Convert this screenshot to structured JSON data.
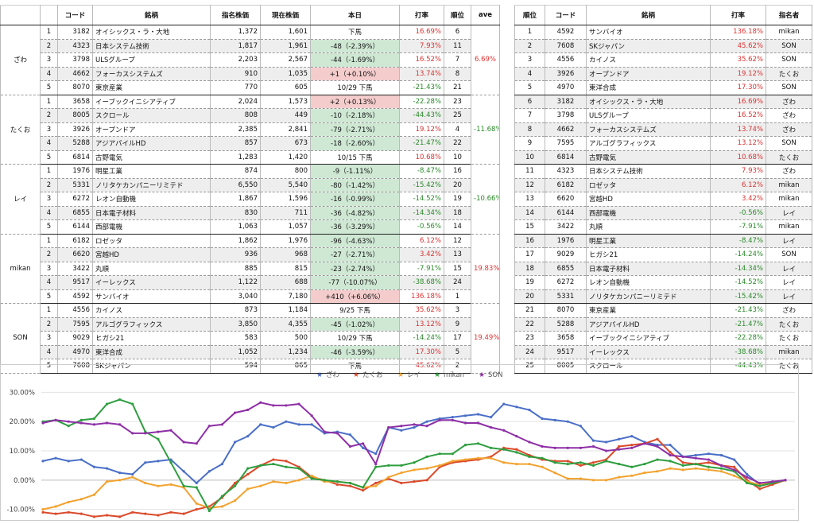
{
  "left_table": {
    "headers": [
      "",
      "",
      "コード",
      "銘柄",
      "指名株価",
      "現在株価",
      "本日",
      "打率",
      "順位",
      "ave"
    ],
    "groups": [
      {
        "name": "ざわ",
        "ave": "6.69%",
        "ave_sign": "pos",
        "rows": [
          {
            "no": "1",
            "code": "3182",
            "name": "オイシックス・ラ・大地",
            "nominated": "1,372",
            "current": "1,601",
            "today": "下馬",
            "today_style": "",
            "rate": "16.69%",
            "rate_sign": "pos",
            "rank": "6"
          },
          {
            "no": "2",
            "code": "4323",
            "name": "日本システム技術",
            "nominated": "1,817",
            "current": "1,961",
            "today": "-48（-2.39%）",
            "today_style": "neg",
            "rate": "7.93%",
            "rate_sign": "pos",
            "rank": "11"
          },
          {
            "no": "3",
            "code": "3798",
            "name": "ULSグループ",
            "nominated": "2,203",
            "current": "2,567",
            "today": "-44（-1.69%）",
            "today_style": "neg",
            "rate": "16.52%",
            "rate_sign": "pos",
            "rank": "7"
          },
          {
            "no": "4",
            "code": "4662",
            "name": "フォーカスシステムズ",
            "nominated": "910",
            "current": "1,035",
            "today": "+1（+0.10%）",
            "today_style": "pos",
            "rate": "13.74%",
            "rate_sign": "pos",
            "rank": "8"
          },
          {
            "no": "5",
            "code": "8070",
            "name": "東京産業",
            "nominated": "770",
            "current": "605",
            "today": "10/29 下馬",
            "today_style": "",
            "rate": "-21.43%",
            "rate_sign": "neg",
            "rank": "21"
          }
        ]
      },
      {
        "name": "たくお",
        "ave": "-11.68%",
        "ave_sign": "neg",
        "rows": [
          {
            "no": "1",
            "code": "3658",
            "name": "イーブックイニシアティブ",
            "nominated": "2,024",
            "current": "1,573",
            "today": "+2（+0.13%）",
            "today_style": "pos",
            "rate": "-22.28%",
            "rate_sign": "neg",
            "rank": "23"
          },
          {
            "no": "2",
            "code": "8005",
            "name": "スクロール",
            "nominated": "808",
            "current": "449",
            "today": "-10（-2.18%）",
            "today_style": "neg",
            "rate": "-44.43%",
            "rate_sign": "neg",
            "rank": "25"
          },
          {
            "no": "3",
            "code": "3926",
            "name": "オープンドア",
            "nominated": "2,385",
            "current": "2,841",
            "today": "-79（-2.71%）",
            "today_style": "neg",
            "rate": "19.12%",
            "rate_sign": "pos",
            "rank": "4"
          },
          {
            "no": "4",
            "code": "5288",
            "name": "アジアパイルHD",
            "nominated": "857",
            "current": "673",
            "today": "-18（-2.60%）",
            "today_style": "neg",
            "rate": "-21.47%",
            "rate_sign": "neg",
            "rank": "22"
          },
          {
            "no": "5",
            "code": "6814",
            "name": "古野電気",
            "nominated": "1,283",
            "current": "1,420",
            "today": "10/15 下馬",
            "today_style": "",
            "rate": "10.68%",
            "rate_sign": "pos",
            "rank": "10"
          }
        ]
      },
      {
        "name": "レイ",
        "ave": "-10.66%",
        "ave_sign": "neg",
        "rows": [
          {
            "no": "1",
            "code": "1976",
            "name": "明星工業",
            "nominated": "874",
            "current": "800",
            "today": "-9（-1.11%）",
            "today_style": "neg",
            "rate": "-8.47%",
            "rate_sign": "neg",
            "rank": "16"
          },
          {
            "no": "2",
            "code": "5331",
            "name": "ノリタケカンパニーリミテド",
            "nominated": "6,550",
            "current": "5,540",
            "today": "-80（-1.42%）",
            "today_style": "neg",
            "rate": "-15.42%",
            "rate_sign": "neg",
            "rank": "20"
          },
          {
            "no": "3",
            "code": "6272",
            "name": "レオン自動機",
            "nominated": "1,867",
            "current": "1,596",
            "today": "-16（-0.99%）",
            "today_style": "neg",
            "rate": "-14.52%",
            "rate_sign": "neg",
            "rank": "19"
          },
          {
            "no": "4",
            "code": "6855",
            "name": "日本電子材料",
            "nominated": "830",
            "current": "711",
            "today": "-36（-4.82%）",
            "today_style": "neg",
            "rate": "-14.34%",
            "rate_sign": "neg",
            "rank": "18"
          },
          {
            "no": "5",
            "code": "6144",
            "name": "西部電機",
            "nominated": "1,063",
            "current": "1,057",
            "today": "-36（-3.29%）",
            "today_style": "neg",
            "rate": "-0.56%",
            "rate_sign": "neg",
            "rank": "14"
          }
        ]
      },
      {
        "name": "mikan",
        "ave": "19.83%",
        "ave_sign": "pos",
        "rows": [
          {
            "no": "1",
            "code": "6182",
            "name": "ロゼッタ",
            "nominated": "1,862",
            "current": "1,976",
            "today": "-96（-4.63%）",
            "today_style": "neg",
            "rate": "6.12%",
            "rate_sign": "pos",
            "rank": "12"
          },
          {
            "no": "2",
            "code": "6620",
            "name": "宮越HD",
            "nominated": "936",
            "current": "968",
            "today": "-27（-2.71%）",
            "today_style": "neg",
            "rate": "3.42%",
            "rate_sign": "pos",
            "rank": "13"
          },
          {
            "no": "3",
            "code": "3422",
            "name": "丸順",
            "nominated": "885",
            "current": "815",
            "today": "-23（-2.74%）",
            "today_style": "neg",
            "rate": "-7.91%",
            "rate_sign": "neg",
            "rank": "15"
          },
          {
            "no": "4",
            "code": "9517",
            "name": "イーレックス",
            "nominated": "1,122",
            "current": "688",
            "today": "-77（-10.07%）",
            "today_style": "neg",
            "rate": "-38.68%",
            "rate_sign": "neg",
            "rank": "24"
          },
          {
            "no": "5",
            "code": "4592",
            "name": "サンバイオ",
            "nominated": "3,040",
            "current": "7,180",
            "today": "+410（+6.06%）",
            "today_style": "pos",
            "rate": "136.18%",
            "rate_sign": "pos",
            "rank": "1"
          }
        ]
      },
      {
        "name": "SON",
        "ave": "19.49%",
        "ave_sign": "pos",
        "rows": [
          {
            "no": "1",
            "code": "4556",
            "name": "カイノス",
            "nominated": "873",
            "current": "1,184",
            "today": "9/25 下馬",
            "today_style": "",
            "rate": "35.62%",
            "rate_sign": "pos",
            "rank": "3"
          },
          {
            "no": "2",
            "code": "7595",
            "name": "アルゴグラフィックス",
            "nominated": "3,850",
            "current": "4,355",
            "today": "-45（-1.02%）",
            "today_style": "neg",
            "rate": "13.12%",
            "rate_sign": "pos",
            "rank": "9"
          },
          {
            "no": "3",
            "code": "9029",
            "name": "ヒガシ21",
            "nominated": "583",
            "current": "500",
            "today": "10/29 下馬",
            "today_style": "",
            "rate": "-14.24%",
            "rate_sign": "neg",
            "rank": "17"
          },
          {
            "no": "4",
            "code": "4970",
            "name": "東洋合成",
            "nominated": "1,052",
            "current": "1,234",
            "today": "-46（-3.59%）",
            "today_style": "neg",
            "rate": "17.30%",
            "rate_sign": "pos",
            "rank": "5"
          },
          {
            "no": "5",
            "code": "7608",
            "name": "SKジャパン",
            "nominated": "594",
            "current": "865",
            "today": "下馬",
            "today_style": "",
            "rate": "45.62%",
            "rate_sign": "pos",
            "rank": "2"
          }
        ]
      }
    ]
  },
  "right_table": {
    "headers": [
      "順位",
      "コード",
      "銘柄",
      "打率",
      "指名者"
    ],
    "rows": [
      {
        "rank": "1",
        "code": "4592",
        "name": "サンバイオ",
        "rate": "136.18%",
        "sign": "pos",
        "who": "mikan"
      },
      {
        "rank": "2",
        "code": "7608",
        "name": "SKジャパン",
        "rate": "45.62%",
        "sign": "pos",
        "who": "SON"
      },
      {
        "rank": "3",
        "code": "4556",
        "name": "カイノス",
        "rate": "35.62%",
        "sign": "pos",
        "who": "SON"
      },
      {
        "rank": "4",
        "code": "3926",
        "name": "オープンドア",
        "rate": "19.12%",
        "sign": "pos",
        "who": "たくお"
      },
      {
        "rank": "5",
        "code": "4970",
        "name": "東洋合成",
        "rate": "17.30%",
        "sign": "pos",
        "who": "SON"
      },
      {
        "rank": "6",
        "code": "3182",
        "name": "オイシックス・ラ・大地",
        "rate": "16.69%",
        "sign": "pos",
        "who": "ざわ"
      },
      {
        "rank": "7",
        "code": "3798",
        "name": "ULSグループ",
        "rate": "16.52%",
        "sign": "pos",
        "who": "ざわ"
      },
      {
        "rank": "8",
        "code": "4662",
        "name": "フォーカスシステムズ",
        "rate": "13.74%",
        "sign": "pos",
        "who": "ざわ"
      },
      {
        "rank": "9",
        "code": "7595",
        "name": "アルゴグラフィックス",
        "rate": "13.12%",
        "sign": "pos",
        "who": "SON"
      },
      {
        "rank": "10",
        "code": "6814",
        "name": "古野電気",
        "rate": "10.68%",
        "sign": "pos",
        "who": "たくお"
      },
      {
        "rank": "11",
        "code": "4323",
        "name": "日本システム技術",
        "rate": "7.93%",
        "sign": "pos",
        "who": "ざわ"
      },
      {
        "rank": "12",
        "code": "6182",
        "name": "ロゼッタ",
        "rate": "6.12%",
        "sign": "pos",
        "who": "mikan"
      },
      {
        "rank": "13",
        "code": "6620",
        "name": "宮越HD",
        "rate": "3.42%",
        "sign": "pos",
        "who": "mikan"
      },
      {
        "rank": "14",
        "code": "6144",
        "name": "西部電機",
        "rate": "-0.56%",
        "sign": "neg",
        "who": "レイ"
      },
      {
        "rank": "15",
        "code": "3422",
        "name": "丸順",
        "rate": "-7.91%",
        "sign": "neg",
        "who": "mikan"
      },
      {
        "rank": "16",
        "code": "1976",
        "name": "明星工業",
        "rate": "-8.47%",
        "sign": "neg",
        "who": "レイ"
      },
      {
        "rank": "17",
        "code": "9029",
        "name": "ヒガシ21",
        "rate": "-14.24%",
        "sign": "neg",
        "who": "SON"
      },
      {
        "rank": "18",
        "code": "6855",
        "name": "日本電子材料",
        "rate": "-14.34%",
        "sign": "neg",
        "who": "レイ"
      },
      {
        "rank": "19",
        "code": "6272",
        "name": "レオン自動機",
        "rate": "-14.52%",
        "sign": "neg",
        "who": "レイ"
      },
      {
        "rank": "20",
        "code": "5331",
        "name": "ノリタケカンパニーリミテド",
        "rate": "-15.42%",
        "sign": "neg",
        "who": "レイ"
      },
      {
        "rank": "21",
        "code": "8070",
        "name": "東京産業",
        "rate": "-21.43%",
        "sign": "neg",
        "who": "ざわ"
      },
      {
        "rank": "22",
        "code": "5288",
        "name": "アジアパイルHD",
        "rate": "-21.47%",
        "sign": "neg",
        "who": "たくお"
      },
      {
        "rank": "23",
        "code": "3658",
        "name": "イーブックイニシアティブ",
        "rate": "-22.28%",
        "sign": "neg",
        "who": "たくお"
      },
      {
        "rank": "24",
        "code": "9517",
        "name": "イーレックス",
        "rate": "-38.68%",
        "sign": "neg",
        "who": "mikan"
      },
      {
        "rank": "25",
        "code": "8005",
        "name": "スクロール",
        "rate": "-44.43%",
        "sign": "neg",
        "who": "たくお"
      }
    ]
  },
  "colors": {
    "positive": "#d33333",
    "negative": "#2a8a2a",
    "up_bg": "#f4cccc",
    "down_bg": "#cfe8d4"
  },
  "chart_data": {
    "type": "line",
    "ylim": [
      -12,
      32
    ],
    "yticks": [
      "-10.00%",
      "0.00%",
      "10.00%",
      "20.00%",
      "30.00%"
    ],
    "ytick_values": [
      -10,
      0,
      10,
      20,
      30
    ],
    "legend_position": "top",
    "series": [
      {
        "name": "ざわ",
        "color": "#4a6fc7",
        "values": [
          6.5,
          7.5,
          6.5,
          7.0,
          4.5,
          4.0,
          2.5,
          2.0,
          6.0,
          6.5,
          7.0,
          3.0,
          -1.0,
          3.0,
          5.5,
          13.0,
          15.0,
          19.0,
          18.0,
          20.0,
          19.0,
          19.0,
          16.0,
          16.5,
          15.5,
          11.0,
          9.0,
          18.0,
          17.0,
          18.0,
          20.0,
          21.0,
          21.5,
          22.0,
          22.5,
          21.5,
          26.0,
          25.0,
          24.0,
          21.0,
          20.5,
          20.0,
          18.5,
          13.5,
          13.0,
          14.0,
          15.0,
          13.0,
          12.0,
          12.0,
          8.0,
          8.5,
          9.0,
          8.5,
          7.0,
          2.0,
          -1.5,
          -1.0,
          0
        ]
      },
      {
        "name": "たくお",
        "color": "#db4a2b",
        "values": [
          -11.0,
          -11.5,
          -11.0,
          -11.5,
          -12.5,
          -12.0,
          -12.5,
          -11.0,
          -11.5,
          -12.0,
          -11.0,
          -11.5,
          -10.0,
          -9.0,
          -6.0,
          -1.0,
          2.0,
          5.0,
          7.0,
          6.5,
          4.5,
          1.0,
          0.0,
          -1.5,
          -2.0,
          -3.5,
          -1.0,
          0.5,
          -1.0,
          -0.5,
          0.0,
          4.5,
          6.0,
          6.5,
          7.0,
          8.0,
          11.0,
          10.5,
          8.5,
          7.0,
          6.5,
          6.5,
          5.0,
          6.0,
          7.0,
          11.5,
          12.0,
          12.5,
          14.0,
          9.5,
          6.0,
          5.5,
          6.0,
          5.0,
          4.5,
          0.0,
          -3.0,
          -1.5,
          0
        ]
      },
      {
        "name": "レイ",
        "color": "#f2a330",
        "values": [
          -10.0,
          -9.0,
          -7.5,
          -6.5,
          -5.0,
          -0.5,
          0.0,
          1.0,
          -1.0,
          -2.0,
          -1.5,
          -2.5,
          -8.0,
          -9.5,
          -9.0,
          -7.0,
          -3.0,
          -2.0,
          -0.5,
          -1.0,
          0.0,
          1.5,
          -0.5,
          -0.5,
          -1.0,
          -2.5,
          -2.0,
          1.0,
          2.5,
          3.5,
          4.0,
          5.0,
          6.5,
          7.0,
          7.5,
          7.5,
          6.0,
          5.5,
          5.5,
          4.5,
          2.5,
          0.5,
          0.5,
          0.0,
          0.0,
          1.0,
          1.5,
          2.5,
          3.0,
          4.0,
          3.5,
          4.0,
          3.5,
          3.0,
          1.5,
          -0.5,
          -1.5,
          -1.0,
          0
        ]
      },
      {
        "name": "mikan",
        "color": "#2e9e3f",
        "values": [
          20.0,
          20.5,
          18.5,
          20.5,
          21.0,
          26.0,
          27.5,
          26.0,
          16.5,
          14.0,
          6.0,
          -2.0,
          -2.5,
          -10.5,
          -5.5,
          -2.0,
          4.0,
          5.0,
          5.5,
          4.5,
          4.0,
          0.5,
          0.0,
          -0.5,
          -1.0,
          -2.5,
          4.5,
          5.0,
          5.0,
          6.0,
          8.0,
          9.0,
          9.0,
          12.0,
          12.5,
          11.0,
          10.5,
          9.5,
          8.0,
          7.5,
          6.0,
          5.5,
          6.0,
          5.0,
          6.5,
          5.5,
          4.5,
          5.5,
          7.0,
          6.5,
          5.0,
          5.5,
          4.5,
          4.0,
          3.0,
          -1.0,
          -2.0,
          -1.0,
          0
        ]
      },
      {
        "name": "SON",
        "color": "#8e2fa6",
        "values": [
          19.5,
          20.5,
          20.0,
          19.5,
          19.0,
          19.5,
          19.0,
          16.0,
          16.0,
          16.5,
          17.0,
          13.0,
          12.5,
          18.5,
          19.0,
          23.0,
          24.0,
          26.5,
          25.5,
          25.5,
          26.0,
          22.0,
          16.5,
          16.0,
          11.5,
          12.5,
          5.5,
          18.0,
          18.5,
          19.0,
          18.5,
          20.5,
          20.5,
          19.5,
          19.5,
          18.0,
          17.0,
          15.0,
          13.0,
          11.5,
          11.0,
          11.0,
          11.0,
          11.5,
          10.0,
          10.5,
          11.0,
          12.5,
          11.5,
          8.5,
          8.0,
          7.5,
          7.0,
          5.0,
          3.5,
          1.0,
          -1.0,
          -0.5,
          0
        ]
      }
    ]
  }
}
